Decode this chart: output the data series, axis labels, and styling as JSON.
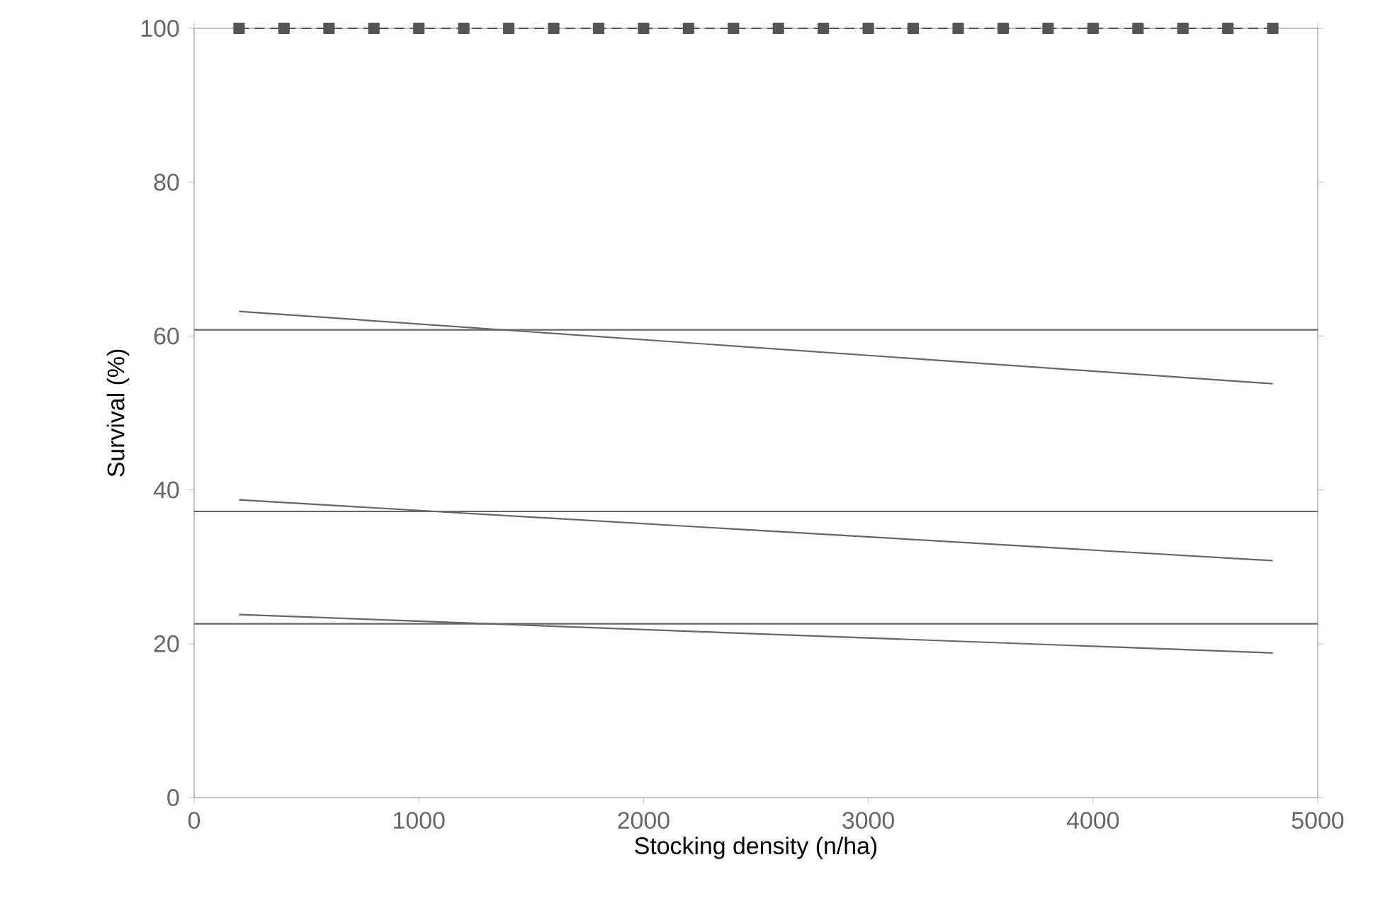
{
  "chart_data": {
    "type": "line",
    "xlabel": "Stocking density (n/ha)",
    "ylabel": "Survival (%)",
    "xlim": [
      0,
      5000
    ],
    "ylim": [
      0,
      100
    ],
    "xticks": [
      0,
      1000,
      2000,
      3000,
      4000,
      5000
    ],
    "yticks": [
      0,
      20,
      40,
      60,
      80,
      100
    ],
    "grid": false,
    "series": [
      {
        "color": "#555555",
        "line_style": "dashed",
        "marker": "square",
        "x": [
          200,
          400,
          600,
          800,
          1000,
          1200,
          1400,
          1600,
          1800,
          2000,
          2200,
          2400,
          2600,
          2800,
          3000,
          3200,
          3400,
          3600,
          3800,
          4000,
          4200,
          4400,
          4600,
          4800
        ],
        "values": [
          100,
          100,
          100,
          100,
          100,
          100,
          100,
          100,
          100,
          100,
          100,
          100,
          100,
          100,
          100,
          100,
          100,
          100,
          100,
          100,
          100,
          100,
          100,
          100
        ]
      },
      {
        "color": "#666666",
        "line_style": "solid",
        "marker": "none",
        "x": [
          0,
          5000
        ],
        "values": [
          60.8,
          60.8
        ]
      },
      {
        "color": "#666666",
        "line_style": "solid",
        "marker": "none",
        "x": [
          200,
          4800
        ],
        "values": [
          63.2,
          53.8
        ]
      },
      {
        "color": "#666666",
        "line_style": "solid",
        "marker": "none",
        "x": [
          0,
          5000
        ],
        "values": [
          37.2,
          37.2
        ]
      },
      {
        "color": "#666666",
        "line_style": "solid",
        "marker": "none",
        "x": [
          200,
          4800
        ],
        "values": [
          38.7,
          30.8
        ]
      },
      {
        "color": "#666666",
        "line_style": "solid",
        "marker": "none",
        "x": [
          0,
          5000
        ],
        "values": [
          22.6,
          22.6
        ]
      },
      {
        "color": "#666666",
        "line_style": "solid",
        "marker": "none",
        "x": [
          200,
          4800
        ],
        "values": [
          23.8,
          18.8
        ]
      }
    ]
  }
}
